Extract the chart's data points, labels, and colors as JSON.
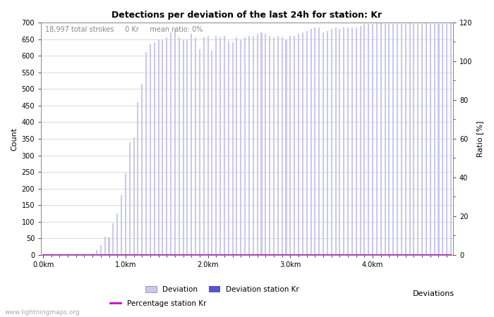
{
  "title": "Detections per deviation of the last 24h for station: Kr",
  "subtitle": "18,997 total strokes     0 Kr     mean ratio: 0%",
  "xlabel": "Deviations",
  "ylabel_left": "Count",
  "ylabel_right": "Ratio [%]",
  "ylim_left": [
    0,
    700
  ],
  "ylim_right": [
    0,
    120
  ],
  "yticks_left": [
    0,
    50,
    100,
    150,
    200,
    250,
    300,
    350,
    400,
    450,
    500,
    550,
    600,
    650,
    700
  ],
  "yticks_right": [
    0,
    20,
    40,
    60,
    80,
    100,
    120
  ],
  "bar_color_light": "#c8c8f0",
  "bar_color_dark": "#5555cc",
  "line_color": "#cc00cc",
  "watermark": "www.lightningmaps.org",
  "xtick_labels": [
    "0.0km",
    "1.0km",
    "2.0km",
    "3.0km",
    "4.0km"
  ],
  "xtick_positions": [
    0,
    20,
    40,
    60,
    80
  ],
  "deviation_values": [
    0,
    0,
    0,
    0,
    0,
    0,
    0,
    0,
    0,
    1,
    1,
    2,
    4,
    15,
    30,
    55,
    52,
    95,
    125,
    180,
    245,
    340,
    355,
    460,
    515,
    610,
    635,
    640,
    650,
    650,
    655,
    670,
    680,
    655,
    650,
    650,
    665,
    655,
    620,
    655,
    660,
    615,
    660,
    655,
    660,
    645,
    640,
    655,
    650,
    655,
    660,
    660,
    665,
    670,
    665,
    660,
    655,
    660,
    655,
    650,
    660,
    660,
    665,
    670,
    675,
    680,
    685,
    685,
    670,
    675,
    680,
    685,
    680,
    685,
    685,
    685,
    685,
    690,
    695,
    695,
    695,
    698,
    698,
    695,
    695,
    695,
    695,
    695,
    695,
    698,
    695,
    695,
    695,
    698,
    695,
    695,
    695,
    695,
    695,
    698
  ],
  "station_kr_values": [
    0,
    0,
    0,
    0,
    0,
    0,
    0,
    0,
    0,
    0,
    0,
    0,
    0,
    0,
    0,
    0,
    0,
    0,
    0,
    0,
    0,
    0,
    0,
    0,
    0,
    0,
    0,
    0,
    0,
    0,
    0,
    0,
    0,
    0,
    0,
    0,
    0,
    0,
    0,
    0,
    0,
    0,
    0,
    0,
    0,
    0,
    0,
    0,
    0,
    0,
    0,
    0,
    0,
    0,
    0,
    0,
    0,
    0,
    0,
    0,
    0,
    0,
    0,
    0,
    0,
    0,
    0,
    0,
    0,
    0,
    0,
    0,
    0,
    0,
    0,
    0,
    0,
    0,
    0,
    0,
    0,
    0,
    0,
    0,
    0,
    0,
    0,
    0,
    0,
    0,
    0,
    0,
    0,
    0,
    0,
    0,
    0,
    0,
    0,
    0
  ],
  "percentage_values": [
    0,
    0,
    0,
    0,
    0,
    0,
    0,
    0,
    0,
    0,
    0,
    0,
    0,
    0,
    0,
    0,
    0,
    0,
    0,
    0,
    0,
    0,
    0,
    0,
    0,
    0,
    0,
    0,
    0,
    0,
    0,
    0,
    0,
    0,
    0,
    0,
    0,
    0,
    0,
    0,
    0,
    0,
    0,
    0,
    0,
    0,
    0,
    0,
    0,
    0,
    0,
    0,
    0,
    0,
    0,
    0,
    0,
    0,
    0,
    0,
    0,
    0,
    0,
    0,
    0,
    0,
    0,
    0,
    0,
    0,
    0,
    0,
    0,
    0,
    0,
    0,
    0,
    0,
    0,
    0,
    0,
    0,
    0,
    0,
    0,
    0,
    0,
    0,
    0,
    0,
    0,
    0,
    0,
    0,
    0,
    0,
    0,
    0,
    0,
    0
  ],
  "legend_deviation": "Deviation",
  "legend_station": "Deviation station Kr",
  "legend_percentage": "Percentage station Kr",
  "bar_width": 0.35,
  "figsize": [
    7.0,
    4.5
  ],
  "dpi": 100
}
